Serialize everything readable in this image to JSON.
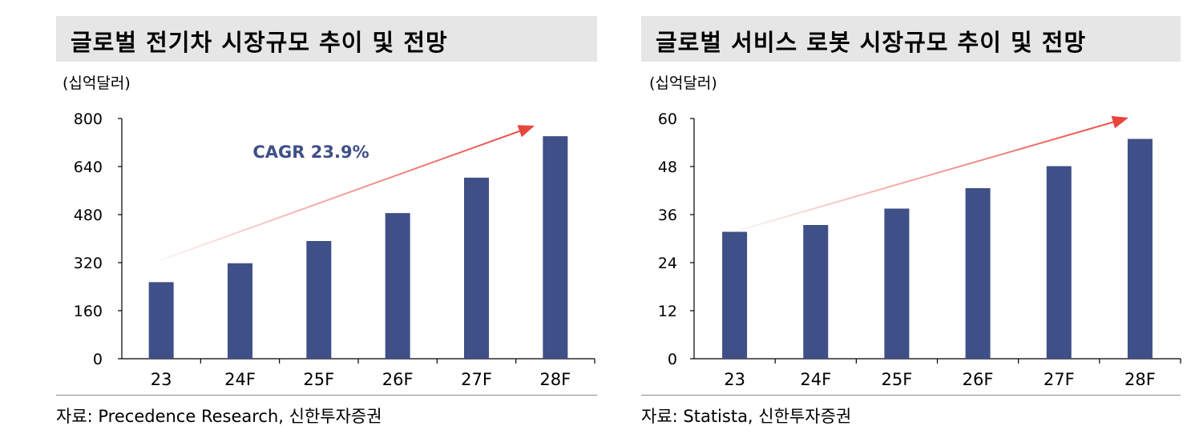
{
  "accent_color": "#3f4f87",
  "arrow_color": "#e8453c",
  "charts": [
    {
      "title": "글로벌 전기차 시장규모 추이 및 전망",
      "unit": "(십억달러)",
      "source": "자료:  Precedence Research,  신한투자증권",
      "chart_data": {
        "type": "bar",
        "categories": [
          "23",
          "24F",
          "25F",
          "26F",
          "27F",
          "28F"
        ],
        "values": [
          255,
          318,
          392,
          485,
          603,
          741
        ],
        "ylim": [
          0,
          800
        ],
        "yticks": [
          0,
          160,
          320,
          480,
          640,
          800
        ],
        "annotation": "CAGR 23.9%",
        "trend_arrow": true,
        "grid": false
      }
    },
    {
      "title": "글로벌 서비스 로봇 시장규모 추이 및 전망",
      "unit": "(십억달러)",
      "source": "자료:  Statista,  신한투자증권",
      "chart_data": {
        "type": "bar",
        "categories": [
          "23",
          "24F",
          "25F",
          "26F",
          "27F",
          "28F"
        ],
        "values": [
          31.7,
          33.4,
          37.5,
          42.6,
          48.1,
          54.9
        ],
        "ylim": [
          0,
          60
        ],
        "yticks": [
          0,
          12,
          24,
          36,
          48,
          60
        ],
        "annotation": "",
        "trend_arrow": true,
        "grid": false
      }
    }
  ]
}
